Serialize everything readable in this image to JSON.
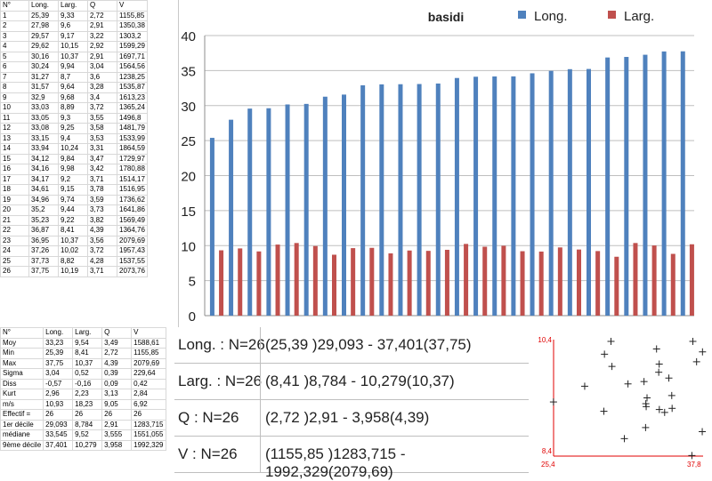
{
  "table": {
    "headers": [
      "N°",
      "Long.",
      "Larg.",
      "Q",
      "V"
    ],
    "rows": [
      [
        "1",
        "25,39",
        "9,33",
        "2,72",
        "1155,85"
      ],
      [
        "2",
        "27,98",
        "9,6",
        "2,91",
        "1350,38"
      ],
      [
        "3",
        "29,57",
        "9,17",
        "3,22",
        "1303,2"
      ],
      [
        "4",
        "29,62",
        "10,15",
        "2,92",
        "1599,29"
      ],
      [
        "5",
        "30,16",
        "10,37",
        "2,91",
        "1697,71"
      ],
      [
        "6",
        "30,24",
        "9,94",
        "3,04",
        "1564,56"
      ],
      [
        "7",
        "31,27",
        "8,7",
        "3,6",
        "1238,25"
      ],
      [
        "8",
        "31,57",
        "9,64",
        "3,28",
        "1535,87"
      ],
      [
        "9",
        "32,9",
        "9,68",
        "3,4",
        "1613,23"
      ],
      [
        "10",
        "33,03",
        "8,89",
        "3,72",
        "1365,24"
      ],
      [
        "11",
        "33,05",
        "9,3",
        "3,55",
        "1496,8"
      ],
      [
        "12",
        "33,08",
        "9,25",
        "3,58",
        "1481,79"
      ],
      [
        "13",
        "33,15",
        "9,4",
        "3,53",
        "1533,99"
      ],
      [
        "14",
        "33,94",
        "10,24",
        "3,31",
        "1864,59"
      ],
      [
        "15",
        "34,12",
        "9,84",
        "3,47",
        "1729,97"
      ],
      [
        "16",
        "34,16",
        "9,98",
        "3,42",
        "1780,88"
      ],
      [
        "17",
        "34,17",
        "9,2",
        "3,71",
        "1514,17"
      ],
      [
        "18",
        "34,61",
        "9,15",
        "3,78",
        "1516,95"
      ],
      [
        "19",
        "34,96",
        "9,74",
        "3,59",
        "1736,62"
      ],
      [
        "20",
        "35,2",
        "9,44",
        "3,73",
        "1641,86"
      ],
      [
        "21",
        "35,23",
        "9,22",
        "3,82",
        "1569,49"
      ],
      [
        "22",
        "36,87",
        "8,41",
        "4,39",
        "1364,76"
      ],
      [
        "23",
        "36,95",
        "10,37",
        "3,56",
        "2079,69"
      ],
      [
        "24",
        "37,26",
        "10,02",
        "3,72",
        "1957,43"
      ],
      [
        "25",
        "37,73",
        "8,82",
        "4,28",
        "1537,55"
      ],
      [
        "26",
        "37,75",
        "10,19",
        "3,71",
        "2073,76"
      ]
    ]
  },
  "stats": {
    "headers": [
      "N°",
      "Long.",
      "Larg.",
      "Q",
      "V"
    ],
    "rows": [
      [
        "Moy",
        "33,23",
        "9,54",
        "3,49",
        "1588,61"
      ],
      [
        "Min",
        "25,39",
        "8,41",
        "2,72",
        "1155,85"
      ],
      [
        "Max",
        "37,75",
        "10,37",
        "4,39",
        "2079,69"
      ],
      [
        "Sigma",
        "3,04",
        "0,52",
        "0,39",
        "229,64"
      ],
      [
        "Diss",
        "-0,57",
        "-0,16",
        "0,09",
        "0,42"
      ],
      [
        "Kurt",
        "2,96",
        "2,23",
        "3,13",
        "2,84"
      ],
      [
        "m/s",
        "10,93",
        "18,23",
        "9,05",
        "6,92"
      ],
      [
        "Effectif =",
        "26",
        "26",
        "26",
        "26"
      ],
      [
        "1er décile",
        "29,093",
        "8,784",
        "2,91",
        "1283,715"
      ],
      [
        "médiane",
        "33,545",
        "9,52",
        "3,555",
        "1551,055"
      ],
      [
        "9ème décile",
        "37,401",
        "10,279",
        "3,958",
        "1992,329"
      ]
    ]
  },
  "summary": [
    {
      "key": "Long. : N=26",
      "value": "(25,39 )29,093 - 37,401(37,75)"
    },
    {
      "key": "Larg. : N=26",
      "value": "(8,41 )8,784 - 10,279(10,37)"
    },
    {
      "key": "Q : N=26",
      "value": "(2,72 )2,91 - 3,958(4,39)"
    },
    {
      "key": "V : N=26",
      "value": "(1155,85 )1283,715 - 1992,329(2079,69)"
    }
  ],
  "colors": {
    "long": "#4f81bd",
    "larg": "#c0504d",
    "grid": "#bfbfbf",
    "scatter_axis": "#e00000"
  },
  "chart_data": [
    {
      "type": "bar",
      "title": "basidi",
      "categories": [
        "1",
        "2",
        "3",
        "4",
        "5",
        "6",
        "7",
        "8",
        "9",
        "10",
        "11",
        "12",
        "13",
        "14",
        "15",
        "16",
        "17",
        "18",
        "19",
        "20",
        "21",
        "22",
        "23",
        "24",
        "25",
        "26"
      ],
      "series": [
        {
          "name": "Long.",
          "values": [
            25.39,
            27.98,
            29.57,
            29.62,
            30.16,
            30.24,
            31.27,
            31.57,
            32.9,
            33.03,
            33.05,
            33.08,
            33.15,
            33.94,
            34.12,
            34.16,
            34.17,
            34.61,
            34.96,
            35.2,
            35.23,
            36.87,
            36.95,
            37.26,
            37.73,
            37.75
          ]
        },
        {
          "name": "Larg.",
          "values": [
            9.33,
            9.6,
            9.17,
            10.15,
            10.37,
            9.94,
            8.7,
            9.64,
            9.68,
            8.89,
            9.3,
            9.25,
            9.4,
            10.24,
            9.84,
            9.98,
            9.2,
            9.15,
            9.74,
            9.44,
            9.22,
            8.41,
            10.37,
            10.02,
            8.82,
            10.19
          ]
        }
      ],
      "ylim": [
        0,
        40
      ],
      "yticks": [
        "0",
        "5",
        "10",
        "15",
        "20",
        "25",
        "30",
        "35",
        "40"
      ],
      "grid": true,
      "legend": "top-right",
      "xtick_labels": false
    },
    {
      "type": "scatter",
      "x": [
        25.39,
        27.98,
        29.57,
        29.62,
        30.16,
        30.24,
        31.27,
        31.57,
        32.9,
        33.03,
        33.05,
        33.08,
        33.15,
        33.94,
        34.12,
        34.16,
        34.17,
        34.61,
        34.96,
        35.2,
        35.23,
        36.87,
        36.95,
        37.26,
        37.73,
        37.75
      ],
      "y": [
        9.33,
        9.6,
        9.17,
        10.15,
        10.37,
        9.94,
        8.7,
        9.64,
        9.68,
        8.89,
        9.3,
        9.25,
        9.4,
        10.24,
        9.84,
        9.98,
        9.2,
        9.15,
        9.74,
        9.44,
        9.22,
        8.41,
        10.37,
        10.02,
        8.82,
        10.19
      ],
      "xlim": [
        25.4,
        37.8
      ],
      "ylim": [
        8.4,
        10.4
      ],
      "xtick_labels": [
        "25,4",
        "37,8"
      ],
      "ytick_labels": [
        "8,4",
        "10,4"
      ],
      "marker": "+"
    }
  ]
}
